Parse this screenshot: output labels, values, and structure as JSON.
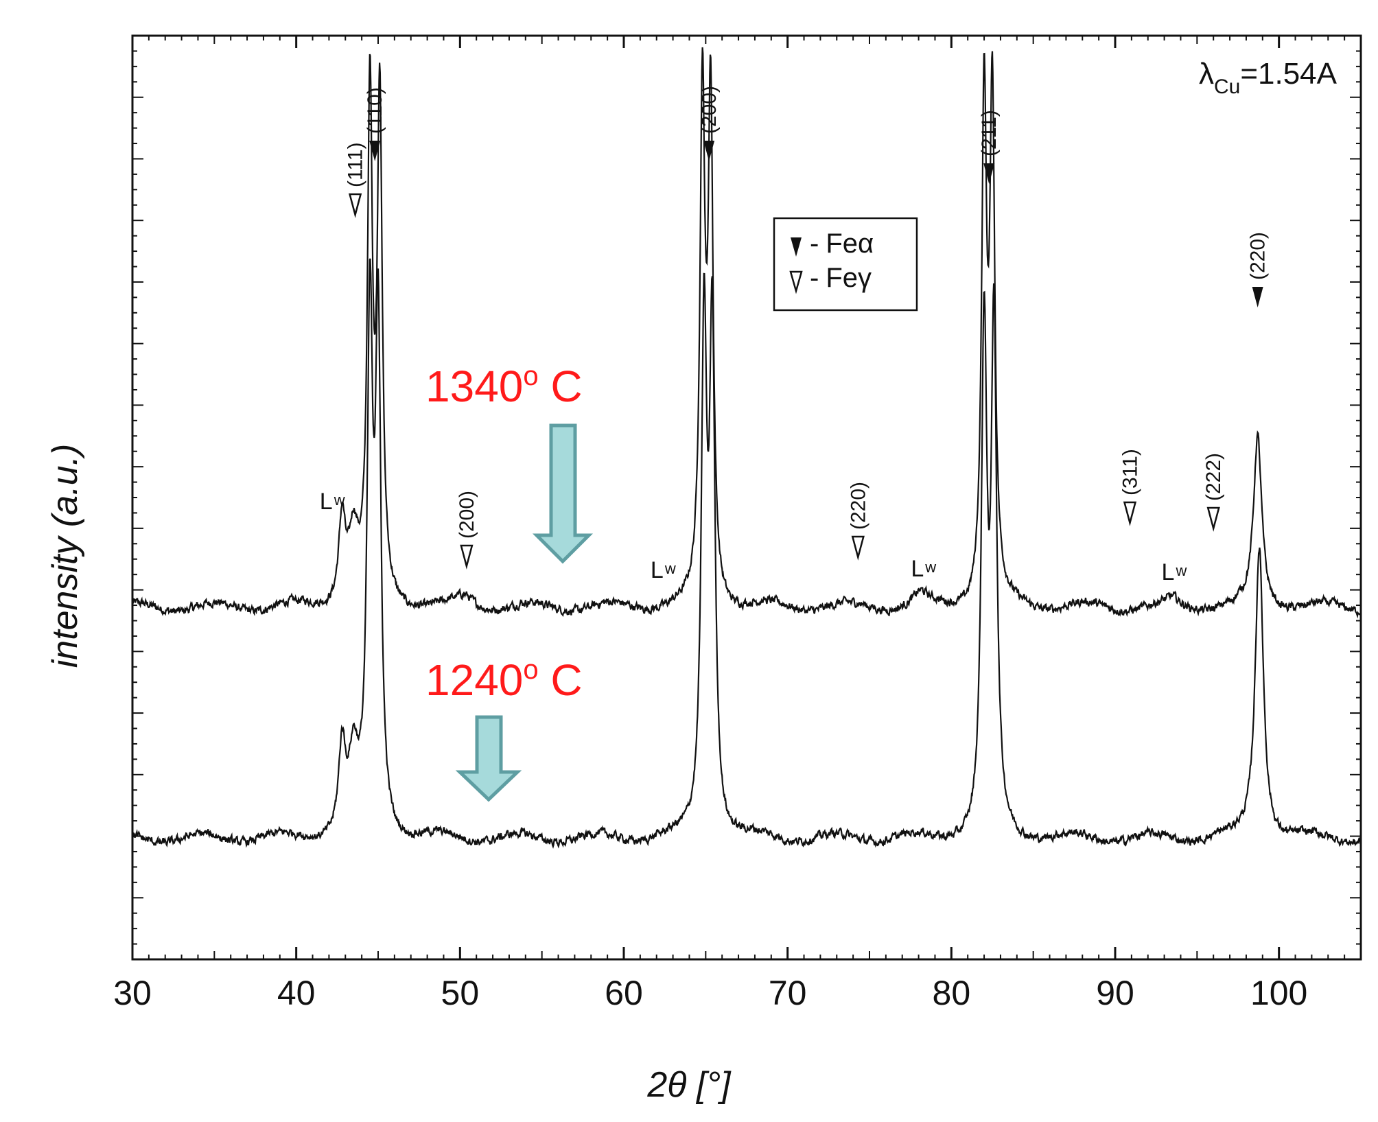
{
  "chart_data": {
    "type": "line",
    "title": "",
    "xlabel": "2θ [°]",
    "ylabel": "intensity (a.u.)",
    "xlim": [
      30,
      105
    ],
    "x_ticks": [
      30,
      40,
      50,
      60,
      70,
      80,
      90,
      100
    ],
    "y_ticks_labeled": false,
    "grid": false,
    "wavelength_note": {
      "prefix": "λ",
      "sub": "Cu",
      "suffix": "=1.54A"
    },
    "legend": {
      "placement": "top-center",
      "entries": [
        {
          "marker": "filled-triangle",
          "dash": "-",
          "base": "Fe",
          "symbol": "α",
          "phase": "Fe-alpha"
        },
        {
          "marker": "open-triangle",
          "dash": "-",
          "base": "Fe",
          "symbol": "γ",
          "phase": "Fe-gamma"
        }
      ]
    },
    "series": [
      {
        "label": {
          "number": "1340",
          "sup": "o",
          "unit": " C"
        },
        "baseline": 0.23,
        "peaks": [
          {
            "x": 42.8,
            "height": 0.38,
            "width": 0.25
          },
          {
            "x": 43.5,
            "height": 0.3,
            "width": 0.35
          },
          {
            "x": 44.5,
            "height": 2.2,
            "width": 0.18
          },
          {
            "x": 45.1,
            "height": 2.2,
            "width": 0.18
          },
          {
            "x": 50.3,
            "height": 0.04,
            "width": 0.6
          },
          {
            "x": 64.8,
            "height": 2.2,
            "width": 0.18
          },
          {
            "x": 65.3,
            "height": 2.2,
            "width": 0.18
          },
          {
            "x": 78.1,
            "height": 0.05,
            "width": 0.5
          },
          {
            "x": 82.0,
            "height": 2.2,
            "width": 0.18
          },
          {
            "x": 82.5,
            "height": 2.2,
            "width": 0.18
          },
          {
            "x": 93.5,
            "height": 0.03,
            "width": 0.4
          },
          {
            "x": 98.7,
            "height": 0.75,
            "width": 0.3
          }
        ]
      },
      {
        "label": {
          "number": "1240",
          "sup": "o",
          "unit": " C"
        },
        "baseline": 0.0,
        "peaks": [
          {
            "x": 42.8,
            "height": 0.38,
            "width": 0.25
          },
          {
            "x": 43.5,
            "height": 0.32,
            "width": 0.35
          },
          {
            "x": 44.5,
            "height": 2.2,
            "width": 0.2
          },
          {
            "x": 45.0,
            "height": 2.2,
            "width": 0.2
          },
          {
            "x": 64.9,
            "height": 2.2,
            "width": 0.2
          },
          {
            "x": 65.4,
            "height": 2.2,
            "width": 0.2
          },
          {
            "x": 82.0,
            "height": 2.2,
            "width": 0.2
          },
          {
            "x": 82.6,
            "height": 2.2,
            "width": 0.2
          },
          {
            "x": 98.8,
            "height": 1.3,
            "width": 0.3
          }
        ]
      }
    ],
    "annotations": {
      "fe_alpha_peaks": [
        {
          "text": "(110)",
          "x": 44.8
        },
        {
          "text": "(200)",
          "x": 65.2
        },
        {
          "text": "(211)",
          "x": 82.3
        },
        {
          "text": "(220)",
          "x": 98.7
        }
      ],
      "fe_gamma_peaks": [
        {
          "text": "(111)",
          "x": 43.6
        },
        {
          "text": "(200)",
          "x": 50.4
        },
        {
          "text": "(220)",
          "x": 74.3
        },
        {
          "text": "(311)",
          "x": 90.9
        },
        {
          "text": "(222)",
          "x": 96.0
        }
      ],
      "lw_marks": [
        {
          "base": "L",
          "sub": "w",
          "x": 42.1
        },
        {
          "base": "L",
          "sub": "w",
          "x": 62.3
        },
        {
          "base": "L",
          "sub": "w",
          "x": 78.2
        },
        {
          "base": "L",
          "sub": "w",
          "x": 93.5
        }
      ]
    }
  },
  "colors": {
    "trace": "#111111",
    "temperature_label": "#ff1a1a",
    "arrow_fill": "#a6dadb",
    "arrow_stroke": "#5e9ea2"
  }
}
